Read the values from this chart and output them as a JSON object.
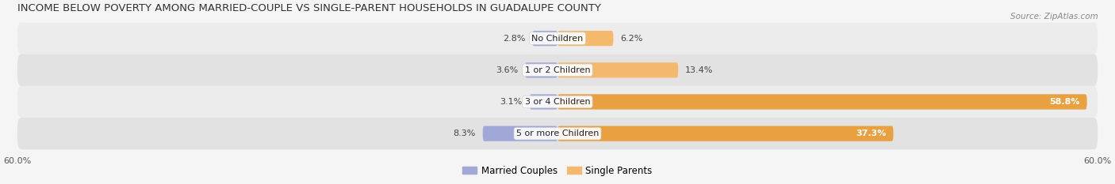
{
  "title": "INCOME BELOW POVERTY AMONG MARRIED-COUPLE VS SINGLE-PARENT HOUSEHOLDS IN GUADALUPE COUNTY",
  "source": "Source: ZipAtlas.com",
  "categories": [
    "No Children",
    "1 or 2 Children",
    "3 or 4 Children",
    "5 or more Children"
  ],
  "married_values": [
    2.8,
    3.6,
    3.1,
    8.3
  ],
  "single_values": [
    6.2,
    13.4,
    58.8,
    37.3
  ],
  "xlim": 60.0,
  "married_color": "#a0a8d8",
  "single_color": "#f5b96e",
  "single_color_dark": "#e8a040",
  "title_fontsize": 9.5,
  "label_fontsize": 8.0,
  "value_fontsize": 8.0,
  "axis_label_fontsize": 8.0,
  "legend_fontsize": 8.5,
  "bar_height": 0.48,
  "figsize": [
    14.06,
    2.33
  ],
  "dpi": 100,
  "bg_color": "#f5f5f5",
  "row_colors": [
    "#ececec",
    "#e2e2e2"
  ]
}
